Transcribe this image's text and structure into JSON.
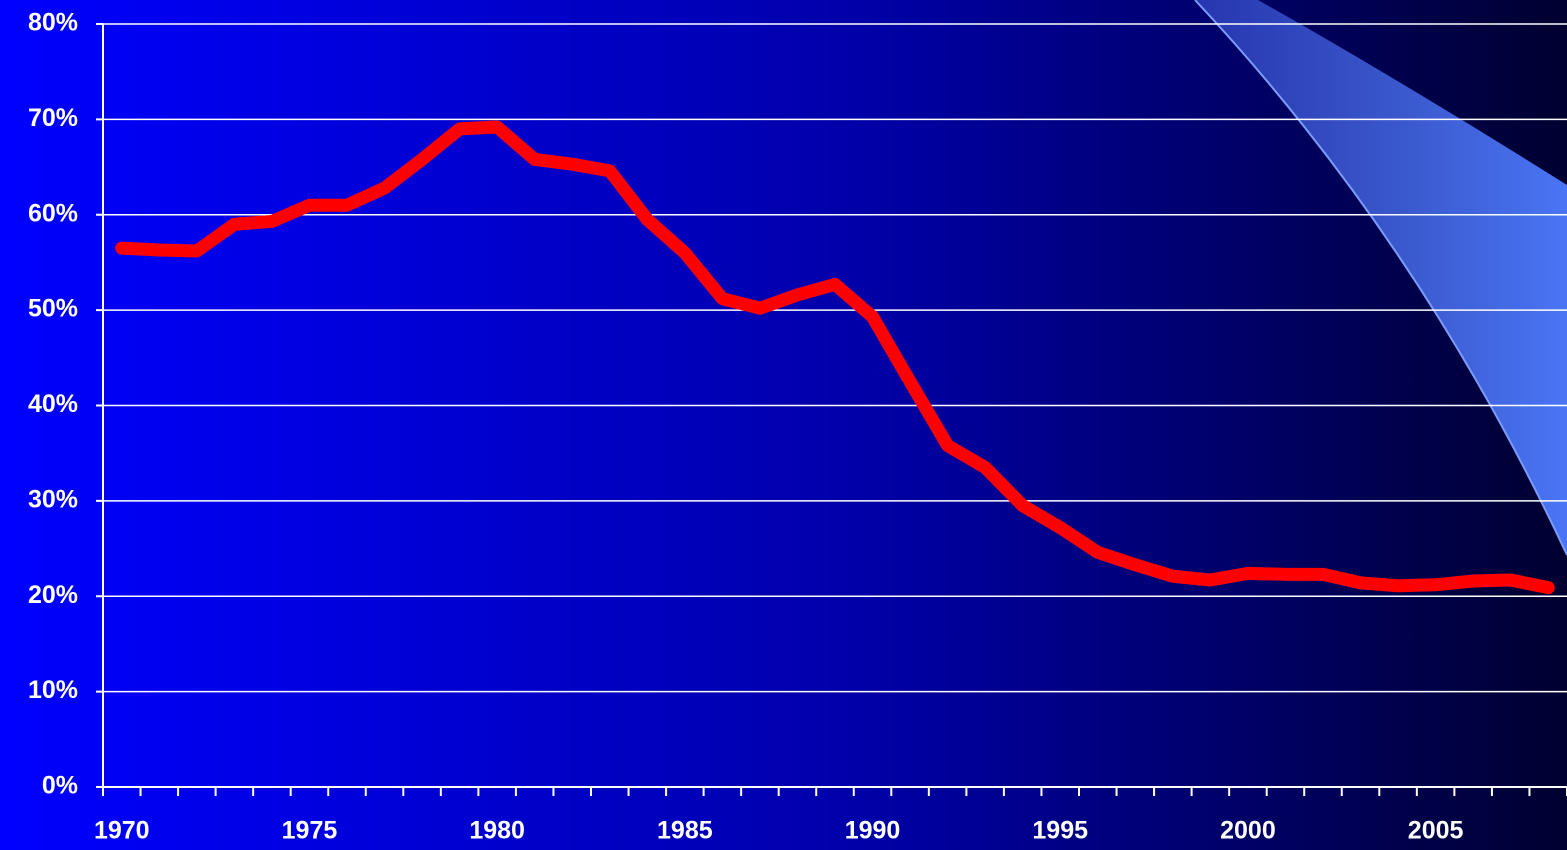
{
  "chart_data": {
    "type": "line",
    "categories": [
      "1970",
      null,
      null,
      null,
      null,
      "1975",
      null,
      null,
      null,
      null,
      "1980",
      null,
      null,
      null,
      null,
      "1985",
      null,
      null,
      null,
      null,
      "1990",
      null,
      null,
      null,
      null,
      "1995",
      null,
      null,
      null,
      null,
      "2000",
      null,
      null,
      null,
      null,
      "2005",
      null,
      null,
      null
    ],
    "series": [
      {
        "color": "#ff0000",
        "values": [
          56.5,
          56.3,
          56.2,
          59.0,
          59.3,
          61.0,
          61.0,
          62.8,
          65.8,
          69.0,
          69.2,
          65.8,
          65.3,
          64.6,
          59.5,
          56.0,
          51.2,
          50.2,
          51.6,
          52.7,
          49.3,
          42.5,
          35.8,
          33.5,
          29.5,
          27.2,
          24.6,
          23.3,
          22.1,
          21.7,
          22.4,
          22.3,
          22.3,
          21.4,
          21.1,
          21.2,
          21.6,
          21.7,
          20.9
        ]
      }
    ],
    "ylim": [
      0,
      80
    ],
    "yticks": [
      {
        "value": 0,
        "label": "0%"
      },
      {
        "value": 10,
        "label": "10%"
      },
      {
        "value": 20,
        "label": "20%"
      },
      {
        "value": 30,
        "label": "30%"
      },
      {
        "value": 40,
        "label": "40%"
      },
      {
        "value": 50,
        "label": "50%"
      },
      {
        "value": 60,
        "label": "60%"
      },
      {
        "value": 70,
        "label": "70%"
      },
      {
        "value": 80,
        "label": "80%"
      }
    ],
    "grid": true
  }
}
